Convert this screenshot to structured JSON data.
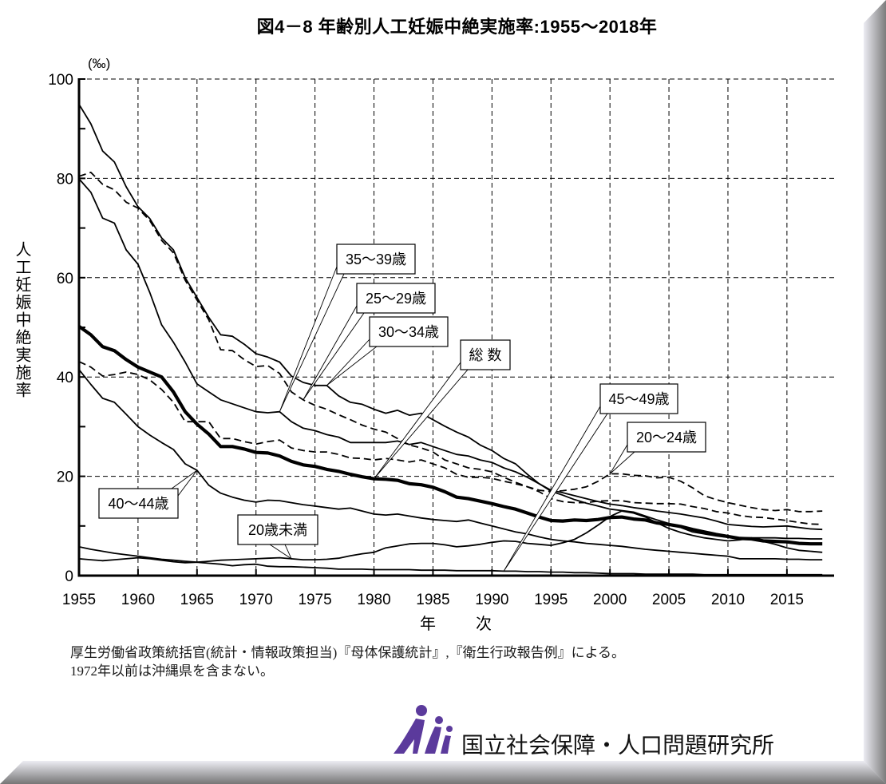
{
  "title": "図4－8 年齢別人工妊娠中絶実施率:1955～2018年",
  "chart_data": {
    "type": "line",
    "title": "図4－8 年齢別人工妊娠中絶実施率:1955～2018年",
    "y_unit": "(‰)",
    "ylabel": "人工妊娠中絶実施率",
    "xlabel": "年　次",
    "xlim": [
      1955,
      2019
    ],
    "ylim": [
      0,
      100
    ],
    "grid": true,
    "legend": "callout labels on lines",
    "xticks": [
      1955,
      1960,
      1965,
      1970,
      1975,
      1980,
      1985,
      1990,
      1995,
      2000,
      2005,
      2010,
      2015
    ],
    "yticks": [
      0,
      20,
      40,
      60,
      80,
      100
    ],
    "y_minor_ticks": [
      10,
      30,
      50,
      70,
      90
    ],
    "x": [
      1955,
      1956,
      1957,
      1958,
      1959,
      1960,
      1961,
      1962,
      1963,
      1964,
      1965,
      1966,
      1967,
      1968,
      1969,
      1970,
      1971,
      1972,
      1973,
      1974,
      1975,
      1976,
      1977,
      1978,
      1979,
      1980,
      1981,
      1982,
      1983,
      1984,
      1985,
      1986,
      1987,
      1988,
      1989,
      1990,
      1991,
      1992,
      1993,
      1994,
      1995,
      1996,
      1997,
      1998,
      1999,
      2000,
      2001,
      2002,
      2003,
      2004,
      2005,
      2006,
      2007,
      2008,
      2009,
      2010,
      2011,
      2012,
      2013,
      2014,
      2015,
      2016,
      2017,
      2018
    ],
    "series": [
      {
        "key": "total",
        "name": "総 数",
        "line_style": "thick",
        "color": "#000000",
        "values": [
          50.2,
          48.5,
          46.1,
          45.3,
          43.5,
          42.0,
          41.0,
          40.0,
          37.0,
          33.0,
          30.5,
          28.5,
          26.0,
          26.0,
          25.5,
          24.8,
          24.7,
          24.1,
          23.0,
          22.3,
          22.0,
          21.4,
          21.0,
          20.4,
          19.9,
          19.5,
          19.4,
          19.2,
          18.5,
          18.3,
          17.8,
          16.9,
          15.8,
          15.5,
          15.0,
          14.5,
          13.9,
          13.4,
          12.6,
          11.8,
          11.1,
          11.0,
          11.2,
          11.1,
          11.3,
          11.7,
          11.8,
          11.4,
          11.2,
          10.6,
          10.3,
          9.9,
          9.3,
          8.8,
          8.3,
          7.9,
          7.5,
          7.4,
          7.0,
          6.9,
          6.8,
          6.5,
          6.4,
          6.4
        ]
      },
      {
        "key": "under20",
        "name": "20歳未満",
        "line_style": "solid",
        "color": "#000000",
        "values": [
          3.4,
          3.2,
          3.0,
          3.2,
          3.4,
          3.6,
          3.4,
          3.1,
          2.8,
          2.6,
          2.7,
          2.9,
          3.1,
          3.2,
          3.3,
          3.4,
          3.5,
          3.6,
          3.4,
          3.2,
          3.2,
          3.3,
          3.5,
          4.0,
          4.4,
          4.7,
          5.6,
          6.0,
          6.4,
          6.5,
          6.5,
          6.2,
          5.8,
          6.0,
          6.3,
          6.7,
          7.0,
          6.9,
          6.5,
          6.3,
          6.1,
          6.6,
          7.3,
          8.6,
          10.2,
          11.9,
          13.0,
          12.6,
          11.8,
          10.6,
          9.5,
          8.7,
          8.1,
          7.6,
          7.3,
          7.0,
          7.2,
          7.6,
          6.9,
          6.3,
          5.6,
          5.1,
          4.9,
          4.7
        ]
      },
      {
        "key": "a20_24",
        "name": "20～24歳",
        "line_style": "dashed",
        "color": "#000000",
        "values": [
          43.1,
          42.0,
          40.2,
          40.5,
          41.0,
          40.5,
          39.4,
          37.5,
          34.9,
          31.0,
          31.0,
          31.0,
          27.6,
          27.6,
          27.0,
          26.5,
          27.0,
          27.3,
          25.7,
          25.2,
          24.9,
          24.9,
          24.4,
          23.7,
          23.6,
          23.3,
          23.6,
          23.3,
          22.9,
          23.3,
          22.5,
          21.7,
          20.4,
          19.8,
          19.8,
          19.6,
          19.0,
          18.5,
          17.9,
          17.2,
          16.9,
          17.1,
          17.4,
          17.9,
          19.0,
          20.5,
          20.5,
          20.2,
          20.1,
          19.7,
          19.8,
          19.0,
          17.7,
          16.1,
          15.3,
          14.7,
          14.2,
          13.7,
          13.3,
          13.1,
          13.3,
          12.9,
          12.9,
          13.0
        ]
      },
      {
        "key": "a25_29",
        "name": "25～29歳",
        "line_style": "dashed",
        "color": "#000000",
        "values": [
          80.4,
          81.2,
          78.8,
          77.7,
          75.2,
          74.0,
          71.5,
          67.5,
          65.0,
          59.5,
          55.5,
          51.5,
          45.5,
          45.3,
          43.5,
          42.1,
          42.3,
          40.7,
          37.0,
          35.4,
          34.3,
          33.5,
          32.4,
          31.4,
          30.3,
          29.5,
          28.9,
          27.6,
          26.3,
          25.7,
          24.9,
          23.3,
          22.5,
          21.7,
          21.4,
          20.9,
          19.8,
          18.8,
          17.9,
          16.9,
          15.5,
          14.9,
          14.7,
          14.7,
          15.0,
          15.1,
          15.1,
          14.7,
          14.6,
          14.5,
          14.5,
          14.4,
          13.9,
          13.5,
          12.9,
          12.6,
          12.1,
          11.8,
          11.7,
          11.4,
          11.1,
          10.7,
          10.4,
          10.3
        ]
      },
      {
        "key": "a30_34",
        "name": "30～34歳",
        "line_style": "solid",
        "color": "#000000",
        "values": [
          94.9,
          91.0,
          85.5,
          83.3,
          78.3,
          74.3,
          71.9,
          68.0,
          65.6,
          60.0,
          56.0,
          52.0,
          48.5,
          48.2,
          46.6,
          44.7,
          44.0,
          43.0,
          40.2,
          38.9,
          38.3,
          38.3,
          36.2,
          34.9,
          34.5,
          33.5,
          32.7,
          33.3,
          32.3,
          32.7,
          31.4,
          30.1,
          28.9,
          27.9,
          26.3,
          25.2,
          23.6,
          22.5,
          20.4,
          18.5,
          17.2,
          16.7,
          16.1,
          15.5,
          14.9,
          14.4,
          14.1,
          13.7,
          13.4,
          13.0,
          12.7,
          12.4,
          12.0,
          11.6,
          11.0,
          10.3,
          10.1,
          9.9,
          9.8,
          9.9,
          10.0,
          9.7,
          9.4,
          9.3
        ]
      },
      {
        "key": "a35_39",
        "name": "35～39歳",
        "line_style": "solid",
        "color": "#000000",
        "values": [
          79.9,
          77.2,
          72.0,
          71.0,
          65.6,
          62.7,
          57.0,
          50.5,
          47.0,
          43.0,
          38.6,
          37.0,
          35.4,
          34.6,
          33.8,
          33.0,
          32.8,
          33.0,
          31.0,
          29.7,
          29.2,
          28.4,
          27.9,
          26.8,
          26.8,
          26.8,
          26.8,
          27.1,
          26.4,
          26.8,
          26.0,
          25.2,
          24.4,
          24.1,
          23.3,
          22.8,
          21.7,
          20.9,
          19.8,
          18.5,
          17.0,
          16.2,
          15.3,
          14.6,
          14.0,
          13.4,
          13.1,
          12.8,
          12.0,
          11.2,
          10.5,
          9.7,
          8.8,
          8.4,
          8.0,
          7.7,
          7.6,
          7.6,
          7.6,
          7.6,
          7.5,
          7.5,
          7.4,
          7.4
        ]
      },
      {
        "key": "a40_44",
        "name": "40～44歳",
        "line_style": "solid",
        "color": "#000000",
        "values": [
          41.5,
          38.5,
          35.7,
          34.9,
          32.5,
          30.0,
          28.3,
          26.8,
          25.4,
          22.5,
          21.2,
          18.2,
          16.6,
          15.8,
          15.2,
          14.8,
          15.2,
          15.1,
          14.7,
          14.3,
          14.0,
          13.7,
          13.4,
          13.6,
          13.0,
          12.4,
          12.2,
          12.4,
          12.0,
          11.6,
          11.3,
          11.1,
          10.9,
          11.2,
          10.6,
          10.0,
          9.4,
          8.8,
          8.4,
          7.8,
          7.3,
          7.0,
          6.8,
          6.5,
          6.3,
          6.1,
          5.9,
          5.6,
          5.3,
          5.1,
          4.9,
          4.7,
          4.5,
          4.3,
          4.1,
          3.9,
          3.4,
          3.4,
          3.4,
          3.4,
          3.3,
          3.3,
          3.2,
          3.2
        ]
      },
      {
        "key": "a45_49",
        "name": "45～49歳",
        "line_style": "solid",
        "color": "#000000",
        "values": [
          5.8,
          5.3,
          4.9,
          4.5,
          4.2,
          3.9,
          3.6,
          3.3,
          3.1,
          2.9,
          2.7,
          2.5,
          2.3,
          2.0,
          2.2,
          2.3,
          1.9,
          1.8,
          1.8,
          1.7,
          1.6,
          1.5,
          1.3,
          1.3,
          1.3,
          1.2,
          1.2,
          1.2,
          1.2,
          1.1,
          1.1,
          1.1,
          1.0,
          1.0,
          1.0,
          1.0,
          0.9,
          0.9,
          0.8,
          0.8,
          0.7,
          0.7,
          0.6,
          0.6,
          0.5,
          0.4,
          0.4,
          0.4,
          0.3,
          0.3,
          0.3,
          0.3,
          0.3,
          0.2,
          0.2,
          0.2,
          0.2,
          0.2,
          0.2,
          0.2,
          0.2,
          0.2,
          0.2,
          0.2
        ]
      }
    ],
    "annotations": [
      {
        "text": "35～39歳",
        "series": "a35_39",
        "x": 1972,
        "y": 33.0
      },
      {
        "text": "25～29歳",
        "series": "a25_29",
        "x": 1974,
        "y": 35.4
      },
      {
        "text": "30～34歳",
        "series": "a30_34",
        "x": 1976,
        "y": 38.3
      },
      {
        "text": "総 数",
        "series": "total",
        "x": 1980,
        "y": 19.5
      },
      {
        "text": "45～49歳",
        "series": "a45_49",
        "x": 1991,
        "y": 0.9
      },
      {
        "text": "20～24歳",
        "series": "a20_24",
        "x": 2000,
        "y": 20.5
      },
      {
        "text": "40～44歳",
        "series": "a40_44",
        "x": 1965,
        "y": 21.2
      },
      {
        "text": "20歳未満",
        "series": "under20",
        "x": 1973,
        "y": 3.4
      }
    ]
  },
  "source_note": [
    "厚生労働省政策統括官(統計・情報政策担当)『母体保護統計』,『衛生行政報告例』による。",
    "1972年以前は沖縄県を含まない。"
  ],
  "footer": {
    "org_name": "国立社会保障・人口問題研究所",
    "logo_icon": "ipss-logo-icon",
    "logo_color": "#5b3a9c"
  },
  "frame": {
    "light": "#e9e9f1",
    "dark": "#7c7c7c"
  }
}
